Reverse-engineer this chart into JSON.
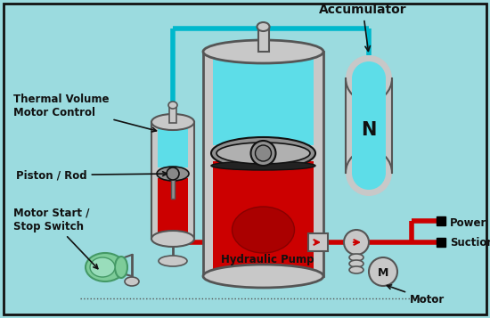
{
  "bg_color": "#9BDBDF",
  "border_color": "#222222",
  "labels": {
    "thermal": "Thermal Volume\nMotor Control",
    "piston": "Piston / Rod",
    "motor_start": "Motor Start /\nStop Switch",
    "accumulator": "Accumulator",
    "hydraulic_pump": "Hydraulic Pump",
    "power": "Power",
    "suction": "Suction",
    "motor": "Motor",
    "N": "N"
  },
  "colors": {
    "gray": "#B0B0B0",
    "dark_gray": "#555555",
    "light_gray": "#C8C8C8",
    "mid_gray": "#909090",
    "red": "#CC0000",
    "dark_red": "#AA0000",
    "cyan_fill": "#5DDDE8",
    "green": "#7DCC99",
    "dark_green": "#449966",
    "dark": "#111111",
    "white": "#FFFFFF",
    "black": "#000000",
    "pipe_cyan": "#00B8CC"
  },
  "figsize": [
    5.5,
    3.57
  ],
  "dpi": 100
}
